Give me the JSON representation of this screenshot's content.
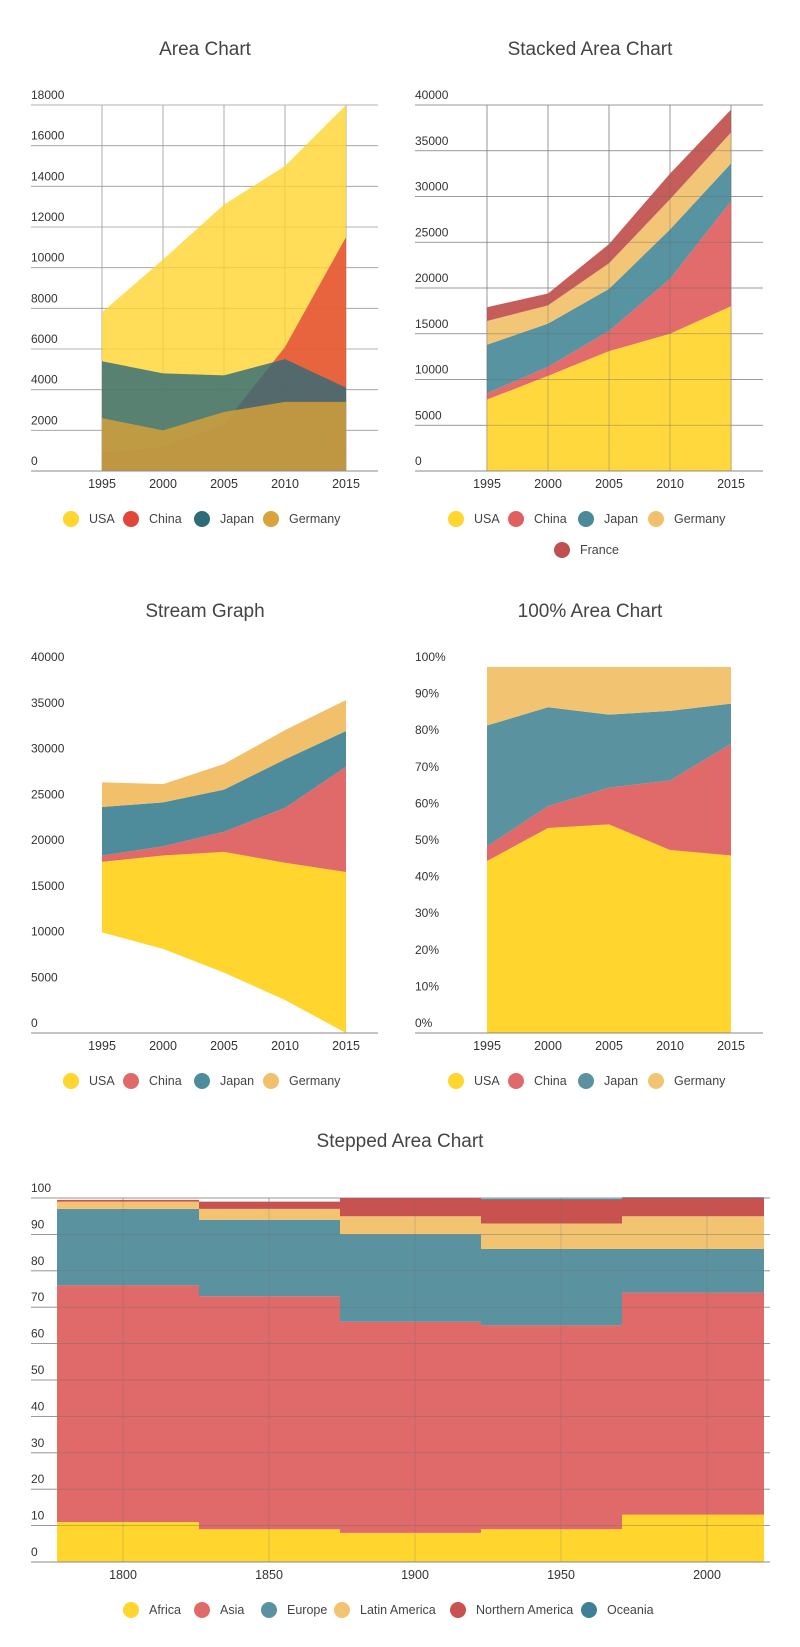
{
  "chart_data": [
    {
      "type": "area",
      "title": "Area Chart",
      "stacked": false,
      "x": [
        "1995",
        "2000",
        "2005",
        "2010",
        "2015"
      ],
      "ylim": [
        0,
        18000
      ],
      "yticks": [
        "0",
        "2000",
        "4000",
        "6000",
        "8000",
        "10000",
        "12000",
        "14000",
        "16000",
        "18000"
      ],
      "grid": true,
      "legend": "bottom",
      "series": [
        {
          "name": "USA",
          "color": "#FFD52E",
          "values": [
            7800,
            10400,
            13100,
            15000,
            18000
          ]
        },
        {
          "name": "China",
          "color": "#E2463A",
          "values": [
            900,
            1200,
            2300,
            6100,
            11500
          ]
        },
        {
          "name": "Japan",
          "color": "#2E6A78",
          "values": [
            5400,
            4800,
            4700,
            5500,
            4100
          ]
        },
        {
          "name": "Germany",
          "color": "#D9A23A",
          "values": [
            2600,
            2000,
            2900,
            3400,
            3400
          ]
        }
      ]
    },
    {
      "type": "area",
      "title": "Stacked Area Chart",
      "stacked": true,
      "x": [
        "1995",
        "2000",
        "2005",
        "2010",
        "2015"
      ],
      "ylim": [
        0,
        40000
      ],
      "yticks": [
        "0",
        "5000",
        "10000",
        "15000",
        "20000",
        "25000",
        "30000",
        "35000",
        "40000"
      ],
      "grid": true,
      "legend": "bottom",
      "series": [
        {
          "name": "USA",
          "color": "#FFD52E",
          "values": [
            7800,
            10400,
            13100,
            15000,
            18000
          ]
        },
        {
          "name": "China",
          "color": "#E06060",
          "values": [
            700,
            1000,
            2200,
            6000,
            11500
          ]
        },
        {
          "name": "Japan",
          "color": "#4A8A99",
          "values": [
            5300,
            4700,
            4600,
            5400,
            4100
          ]
        },
        {
          "name": "Germany",
          "color": "#F2C06A",
          "values": [
            2600,
            2000,
            2800,
            3300,
            3400
          ]
        },
        {
          "name": "France",
          "color": "#C0504D",
          "values": [
            1500,
            1300,
            2100,
            2800,
            2500
          ]
        }
      ]
    },
    {
      "type": "area",
      "title": "Stream Graph",
      "stacked": true,
      "x": [
        "1995",
        "2000",
        "2005",
        "2010",
        "2015"
      ],
      "ylim": [
        0,
        40000
      ],
      "yticks": [
        "0",
        "5000",
        "10000",
        "15000",
        "20000",
        "25000",
        "30000",
        "35000",
        "40000"
      ],
      "grid": false,
      "legend": "bottom",
      "baseline": [
        11000,
        9200,
        6600,
        3600,
        0
      ],
      "series": [
        {
          "name": "USA",
          "color": "#FFD52E",
          "values": [
            7700,
            10200,
            13200,
            15000,
            17600
          ]
        },
        {
          "name": "China",
          "color": "#E06A6A",
          "values": [
            700,
            1000,
            2200,
            6000,
            11500
          ]
        },
        {
          "name": "Japan",
          "color": "#4F8C9B",
          "values": [
            5300,
            4800,
            4600,
            5300,
            3900
          ]
        },
        {
          "name": "Germany",
          "color": "#F2C06A",
          "values": [
            2700,
            2000,
            2800,
            3200,
            3400
          ]
        }
      ]
    },
    {
      "type": "area",
      "title": "100% Area Chart",
      "stacked": true,
      "x": [
        "1995",
        "2000",
        "2005",
        "2010",
        "2015"
      ],
      "ylim": [
        0,
        100
      ],
      "yticks": [
        "0%",
        "10%",
        "20%",
        "30%",
        "40%",
        "50%",
        "60%",
        "70%",
        "80%",
        "90%",
        "100%"
      ],
      "grid": false,
      "legend": "bottom",
      "series": [
        {
          "name": "USA",
          "color": "#FFD52E",
          "values": [
            47,
            56,
            57,
            50,
            48.5
          ]
        },
        {
          "name": "China",
          "color": "#E06A6A",
          "values": [
            4,
            6,
            10,
            19,
            30.5
          ]
        },
        {
          "name": "Japan",
          "color": "#5A92A0",
          "values": [
            33,
            27,
            20,
            19,
            11
          ]
        },
        {
          "name": "Germany",
          "color": "#F2C472",
          "values": [
            16,
            11,
            13,
            12,
            10
          ]
        }
      ]
    },
    {
      "type": "area",
      "title": "Stepped Area Chart",
      "stacked": true,
      "stepped": true,
      "x": [
        "1800",
        "1850",
        "1900",
        "1950",
        "2000"
      ],
      "steps": [
        1775,
        1825,
        1875,
        1925,
        1975,
        2025
      ],
      "ylim": [
        0,
        100
      ],
      "yticks": [
        "0",
        "10",
        "20",
        "30",
        "40",
        "50",
        "60",
        "70",
        "80",
        "90",
        "100"
      ],
      "grid": true,
      "legend": "bottom",
      "series": [
        {
          "name": "Africa",
          "color": "#FFD52E",
          "values": [
            11,
            9,
            8,
            9,
            13
          ]
        },
        {
          "name": "Asia",
          "color": "#E06A6A",
          "values": [
            65,
            64,
            58,
            56,
            61
          ]
        },
        {
          "name": "Europe",
          "color": "#5A92A0",
          "values": [
            21,
            21,
            24,
            21,
            12
          ]
        },
        {
          "name": "Latin America",
          "color": "#F2C472",
          "values": [
            2,
            3,
            5,
            7,
            9
          ]
        },
        {
          "name": "Northern America",
          "color": "#C8524F",
          "values": [
            0.5,
            2,
            5,
            6.5,
            5
          ]
        },
        {
          "name": "Oceania",
          "color": "#3F8097",
          "values": [
            0,
            0,
            0,
            0.3,
            0.2
          ]
        }
      ]
    }
  ]
}
